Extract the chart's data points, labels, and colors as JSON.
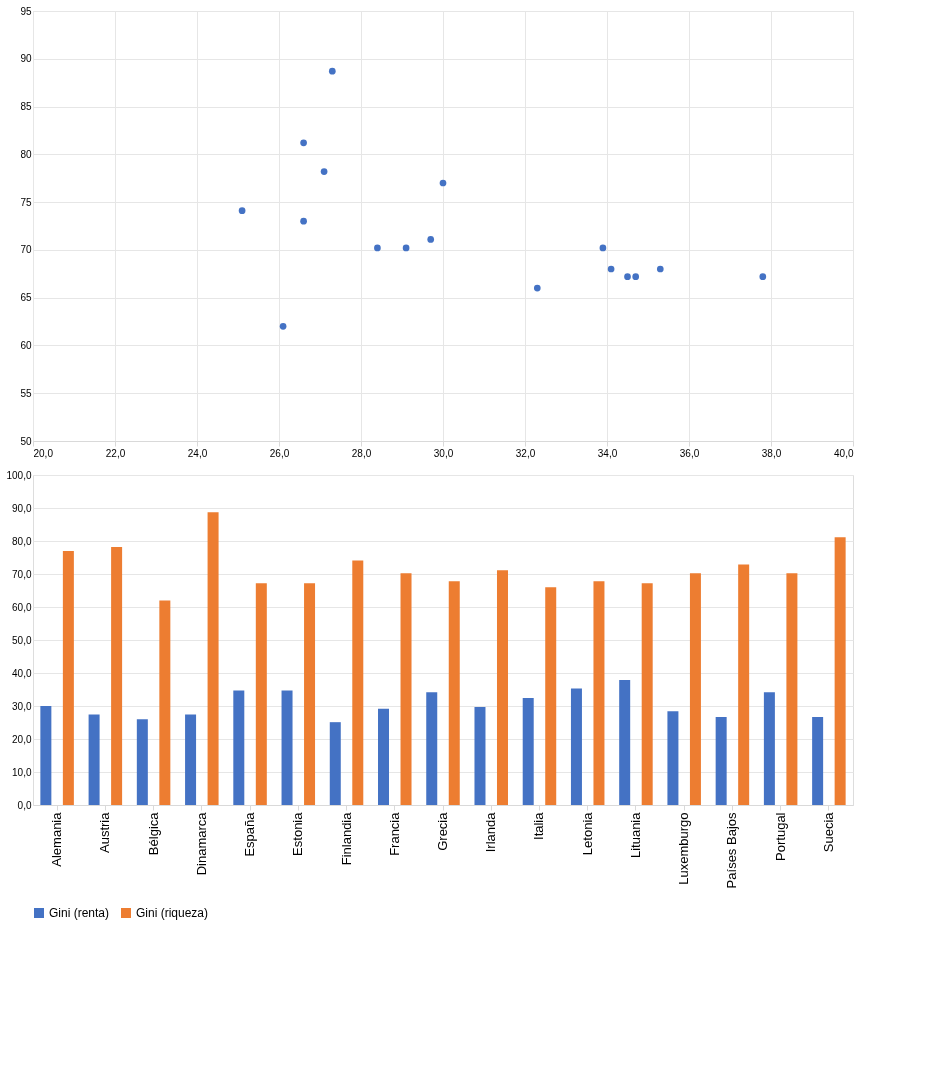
{
  "chart_data": [
    {
      "type": "scatter",
      "x": [
        30.0,
        27.1,
        26.1,
        27.3,
        34.5,
        34.7,
        25.1,
        29.1,
        34.1,
        29.7,
        32.3,
        35.3,
        37.8,
        28.4,
        26.6,
        33.9,
        26.6
      ],
      "series": [
        {
          "color": "#4472c4",
          "values": [
            77.0,
            78.2,
            62.0,
            88.7,
            67.2,
            67.2,
            74.1,
            70.2,
            68.0,
            71.1,
            66.0,
            68.0,
            67.2,
            70.2,
            73.0,
            70.2,
            81.2
          ]
        }
      ],
      "xlim": [
        20,
        40
      ],
      "xticks": [
        {
          "value": 20,
          "label": "20,0"
        },
        {
          "value": 22,
          "label": "22,0"
        },
        {
          "value": 24,
          "label": "24,0"
        },
        {
          "value": 26,
          "label": "26,0"
        },
        {
          "value": 28,
          "label": "28,0"
        },
        {
          "value": 30,
          "label": "30,0"
        },
        {
          "value": 32,
          "label": "32,0"
        },
        {
          "value": 34,
          "label": "34,0"
        },
        {
          "value": 36,
          "label": "36,0"
        },
        {
          "value": 38,
          "label": "38,0"
        },
        {
          "value": 40,
          "label": "40,0"
        }
      ],
      "ylim": [
        50,
        95
      ],
      "yticks": [
        50,
        55,
        60,
        65,
        70,
        75,
        80,
        85,
        90,
        95
      ],
      "grid": true,
      "marker": "circle"
    },
    {
      "type": "bar",
      "categories": [
        "Alemania",
        "Austria",
        "Bélgica",
        "Dinamarca",
        "España",
        "Estonia",
        "Finlandia",
        "Francia",
        "Grecia",
        "Irlanda",
        "Italia",
        "Letonia",
        "Lituania",
        "Luxemburgo",
        "Países Bajos",
        "Portugal",
        "Suecia"
      ],
      "series": [
        {
          "name": "Gini (renta)",
          "color": "#4472c4",
          "values": [
            30.0,
            27.4,
            26.0,
            27.4,
            34.7,
            34.7,
            25.1,
            29.2,
            34.2,
            29.7,
            32.4,
            35.3,
            37.9,
            28.4,
            26.7,
            34.2,
            26.7
          ]
        },
        {
          "name": "Gini (riqueza)",
          "color": "#ed7d31",
          "values": [
            77.0,
            78.2,
            62.0,
            88.7,
            67.2,
            67.2,
            74.1,
            70.2,
            67.8,
            71.1,
            66.0,
            67.8,
            67.2,
            70.2,
            72.9,
            70.2,
            81.1
          ]
        }
      ],
      "ylim": [
        0,
        100
      ],
      "yticks": [
        {
          "value": 0,
          "label": "0,0"
        },
        {
          "value": 10,
          "label": "10,0"
        },
        {
          "value": 20,
          "label": "20,0"
        },
        {
          "value": 30,
          "label": "30,0"
        },
        {
          "value": 40,
          "label": "40,0"
        },
        {
          "value": 50,
          "label": "50,0"
        },
        {
          "value": 60,
          "label": "60,0"
        },
        {
          "value": 70,
          "label": "70,0"
        },
        {
          "value": 80,
          "label": "80,0"
        },
        {
          "value": 90,
          "label": "90,0"
        },
        {
          "value": 100,
          "label": "100,0"
        }
      ],
      "grid": "y",
      "legend": "bottom"
    }
  ]
}
